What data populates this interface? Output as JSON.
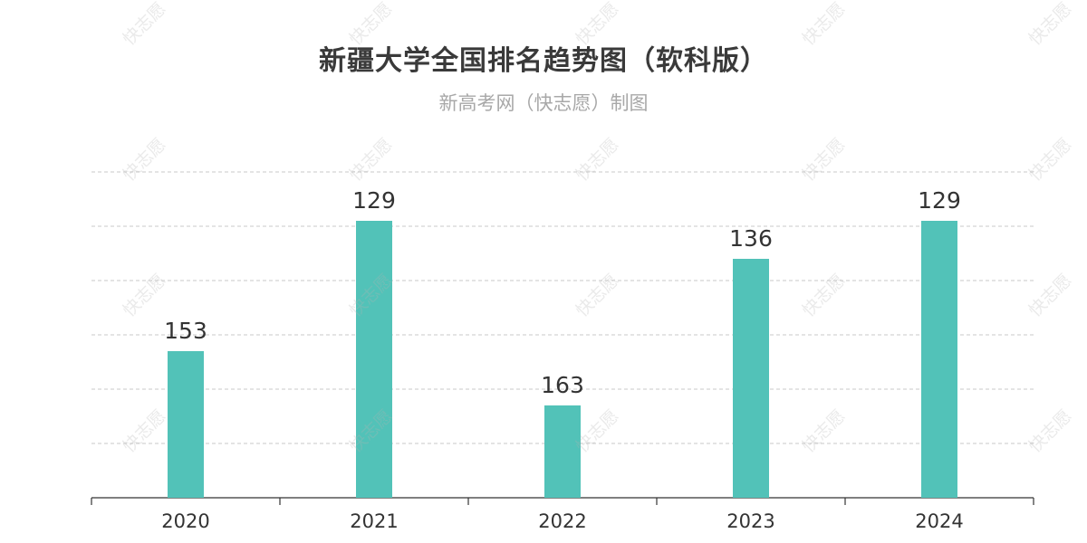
{
  "title": "新疆大学全国排名趋势图（软科版）",
  "subtitle": "新高考网（快志愿）制图",
  "watermark": "快志愿",
  "colors": {
    "bar": "#52c2b8",
    "grid": "#c8c8c8",
    "axis": "#333333",
    "label": "#333333"
  },
  "chart_data": {
    "type": "bar",
    "categories": [
      "2020",
      "2021",
      "2022",
      "2023",
      "2024"
    ],
    "values": [
      153,
      129,
      163,
      136,
      129
    ],
    "data_labels": [
      "153",
      "129",
      "163",
      "136",
      "129"
    ],
    "y_axis_inverted": true,
    "ylim": [
      180,
      120
    ],
    "grid": true,
    "y_tick_labels_shown": false
  }
}
